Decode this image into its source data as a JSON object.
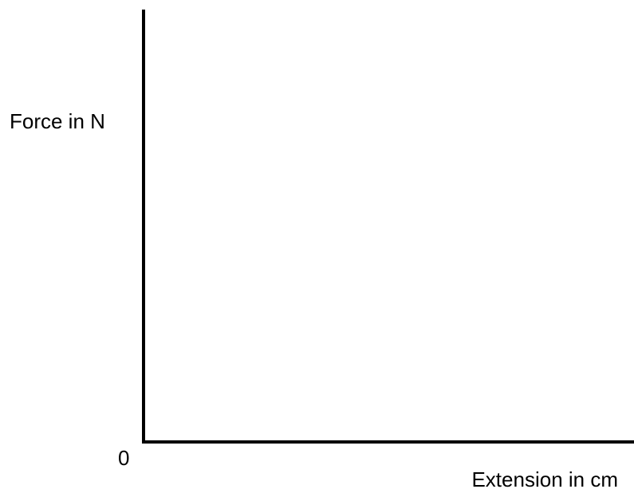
{
  "chart_data": {
    "type": "line",
    "title": "",
    "xlabel": "Extension in cm",
    "ylabel": "Force in N",
    "origin_label": "0",
    "series": [],
    "grid": false,
    "legend": "none"
  },
  "colors": {
    "axis": "#000000",
    "background": "#ffffff"
  }
}
